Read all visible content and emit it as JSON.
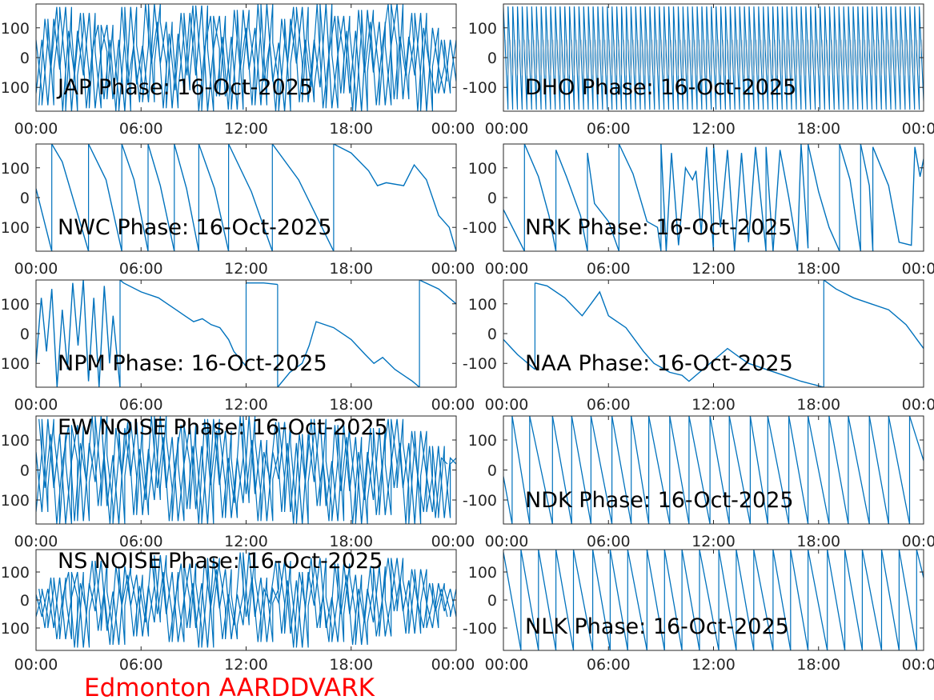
{
  "footer": "Edmonton AARDDVARK",
  "colors": {
    "line": "#0072bd",
    "axis": "#262626",
    "footer": "#ff0000"
  },
  "chart_data": [
    {
      "type": "line",
      "title": "JAP Phase: 16-Oct-2025",
      "ylim": [
        -180,
        180
      ],
      "yticks": [
        "100",
        "0",
        "-100"
      ],
      "xticks": [
        "00:00",
        "06:00",
        "12:00",
        "18:00",
        "00:00"
      ],
      "xlim_hours": [
        0,
        24
      ],
      "grid": false,
      "values": [
        -120,
        60,
        -160,
        130,
        -40,
        170,
        -180,
        90,
        -60,
        150,
        -170,
        20,
        110,
        -140,
        60,
        -180,
        170,
        -90,
        40,
        -150,
        180,
        -20,
        120,
        -170,
        80,
        -110,
        150,
        -60,
        175,
        -180,
        30,
        140,
        -130,
        70,
        -175,
        160,
        -40,
        100,
        -160,
        180,
        -80,
        50,
        -180,
        130,
        -20,
        170,
        -150,
        60,
        -100,
        180,
        -170,
        10,
        140,
        -120,
        90,
        -180,
        160,
        -50,
        120,
        -160,
        40,
        180,
        -140,
        70,
        -60,
        150,
        -180,
        100,
        -30,
        -120,
        60,
        -80
      ]
    },
    {
      "type": "line",
      "title": "DHO Phase: 16-Oct-2025",
      "ylim": [
        -180,
        180
      ],
      "yticks": [
        "100",
        "0",
        "-100"
      ],
      "xticks": [
        "00:00",
        "06:00",
        "12:00",
        "18:00",
        "00:00"
      ],
      "xlim_hours": [
        0,
        24
      ],
      "grid": false,
      "sawtooth_period_hours": 0.27
    },
    {
      "type": "line",
      "title": "NWC Phase: 16-Oct-2025",
      "ylim": [
        -180,
        180
      ],
      "yticks": [
        "100",
        "0",
        "-100"
      ],
      "xticks": [
        "00:00",
        "06:00",
        "12:00",
        "18:00",
        "00:00"
      ],
      "xlim_hours": [
        0,
        24
      ],
      "grid": false,
      "segments": [
        [
          [
            0,
            30
          ],
          [
            0.9,
            -180
          ]
        ],
        [
          [
            0.9,
            180
          ],
          [
            1.5,
            120
          ],
          [
            2.2,
            -20
          ],
          [
            3,
            -180
          ]
        ],
        [
          [
            3,
            180
          ],
          [
            4,
            60
          ],
          [
            4.9,
            -180
          ]
        ],
        [
          [
            4.9,
            180
          ],
          [
            5.6,
            60
          ],
          [
            6.4,
            -180
          ]
        ],
        [
          [
            6.4,
            180
          ],
          [
            7.1,
            40
          ],
          [
            7.9,
            -180
          ]
        ],
        [
          [
            7.9,
            180
          ],
          [
            8.6,
            30
          ],
          [
            9.3,
            -180
          ]
        ],
        [
          [
            9.3,
            180
          ],
          [
            10.2,
            30
          ],
          [
            11,
            -180
          ]
        ],
        [
          [
            11,
            180
          ],
          [
            12.3,
            20
          ],
          [
            13.5,
            -180
          ]
        ],
        [
          [
            13.5,
            180
          ],
          [
            15,
            60
          ],
          [
            17,
            -180
          ]
        ],
        [
          [
            17,
            180
          ],
          [
            18,
            150
          ],
          [
            19,
            90
          ],
          [
            19.5,
            40
          ],
          [
            20,
            50
          ],
          [
            21,
            40
          ],
          [
            21.6,
            110
          ],
          [
            22.3,
            60
          ],
          [
            23,
            -60
          ],
          [
            23.6,
            -100
          ],
          [
            24,
            -180
          ]
        ]
      ]
    },
    {
      "type": "line",
      "title": "NRK Phase: 16-Oct-2025",
      "ylim": [
        -180,
        180
      ],
      "yticks": [
        "100",
        "0",
        "-100"
      ],
      "xticks": [
        "00:00",
        "06:00",
        "12:00",
        "18:00",
        "00:00"
      ],
      "xlim_hours": [
        0,
        24
      ],
      "grid": false,
      "segments": [
        [
          [
            0,
            -40
          ],
          [
            1.2,
            -180
          ]
        ],
        [
          [
            1.2,
            180
          ],
          [
            2,
            70
          ],
          [
            2.6,
            -60
          ],
          [
            3,
            -180
          ]
        ],
        [
          [
            3,
            160
          ],
          [
            3.6,
            70
          ],
          [
            4.4,
            -60
          ],
          [
            4.8,
            -180
          ]
        ],
        [
          [
            4.8,
            150
          ],
          [
            5.2,
            -20
          ],
          [
            6,
            -80
          ],
          [
            6.6,
            -180
          ]
        ],
        [
          [
            6.6,
            180
          ],
          [
            7.4,
            80
          ],
          [
            8.2,
            -80
          ],
          [
            8.8,
            -100
          ],
          [
            9,
            -180
          ]
        ],
        [
          [
            9,
            180
          ],
          [
            9.3,
            -180
          ],
          [
            9.6,
            150
          ],
          [
            10,
            -160
          ],
          [
            10.4,
            100
          ],
          [
            10.8,
            60
          ],
          [
            11,
            90
          ],
          [
            11.3,
            -120
          ],
          [
            11.6,
            170
          ],
          [
            12,
            -180
          ]
        ],
        [
          [
            12,
            180
          ],
          [
            12.4,
            -100
          ],
          [
            12.8,
            160
          ],
          [
            13.2,
            -180
          ],
          [
            13.6,
            150
          ],
          [
            14,
            -150
          ],
          [
            14.4,
            170
          ],
          [
            15,
            -180
          ]
        ],
        [
          [
            15,
            170
          ],
          [
            15.4,
            -180
          ],
          [
            15.8,
            160
          ],
          [
            16.3,
            0
          ],
          [
            16.8,
            -180
          ],
          [
            17,
            180
          ],
          [
            17.4,
            -170
          ]
        ],
        [
          [
            17.4,
            180
          ],
          [
            18,
            20
          ],
          [
            18.6,
            -100
          ],
          [
            19.2,
            -180
          ]
        ],
        [
          [
            19.2,
            180
          ],
          [
            19.8,
            60
          ],
          [
            20.4,
            -180
          ]
        ],
        [
          [
            20.4,
            180
          ],
          [
            20.9,
            40
          ],
          [
            21.1,
            -180
          ]
        ],
        [
          [
            21.1,
            170
          ],
          [
            22,
            40
          ],
          [
            22.6,
            -150
          ],
          [
            23.3,
            -160
          ],
          [
            23.5,
            170
          ],
          [
            23.8,
            70
          ],
          [
            24,
            130
          ]
        ]
      ]
    },
    {
      "type": "line",
      "title": "NPM Phase: 16-Oct-2025",
      "ylim": [
        -180,
        180
      ],
      "yticks": [
        "100",
        "0",
        "-100"
      ],
      "xticks": [
        "00:00",
        "06:00",
        "12:00",
        "18:00",
        "00:00"
      ],
      "xlim_hours": [
        0,
        24
      ],
      "grid": false,
      "segments": [
        [
          [
            0,
            -100
          ],
          [
            0.3,
            120
          ],
          [
            0.6,
            -60
          ],
          [
            0.9,
            150
          ],
          [
            1.2,
            -180
          ],
          [
            1.5,
            80
          ],
          [
            1.8,
            -120
          ],
          [
            2.1,
            170
          ],
          [
            2.4,
            -40
          ],
          [
            2.7,
            180
          ],
          [
            3,
            -160
          ],
          [
            3.3,
            120
          ],
          [
            3.6,
            -180
          ],
          [
            3.9,
            160
          ],
          [
            4.2,
            -100
          ],
          [
            4.4,
            60
          ],
          [
            4.8,
            -180
          ]
        ],
        [
          [
            4.8,
            180
          ],
          [
            5,
            170
          ],
          [
            6,
            140
          ],
          [
            7,
            120
          ],
          [
            7.5,
            100
          ],
          [
            8,
            80
          ],
          [
            8.5,
            60
          ],
          [
            9,
            40
          ],
          [
            9.5,
            50
          ],
          [
            10,
            30
          ],
          [
            10.5,
            20
          ],
          [
            11,
            -20
          ],
          [
            11.3,
            -60
          ],
          [
            12,
            -110
          ]
        ],
        [
          [
            12,
            170
          ],
          [
            13,
            170
          ],
          [
            13.8,
            165
          ]
        ],
        [
          [
            13.8,
            -180
          ],
          [
            14.5,
            -130
          ],
          [
            15.2,
            -100
          ],
          [
            15.6,
            -40
          ],
          [
            16,
            40
          ],
          [
            17,
            20
          ],
          [
            18,
            -20
          ],
          [
            18.8,
            -70
          ],
          [
            19.3,
            -100
          ],
          [
            19.8,
            -80
          ],
          [
            20.5,
            -120
          ],
          [
            21.5,
            -160
          ],
          [
            21.9,
            -180
          ]
        ],
        [
          [
            21.9,
            180
          ],
          [
            23,
            150
          ],
          [
            24,
            100
          ]
        ]
      ]
    },
    {
      "type": "line",
      "title": "NAA Phase: 16-Oct-2025",
      "ylim": [
        -180,
        180
      ],
      "yticks": [
        "100",
        "0",
        "-100"
      ],
      "xticks": [
        "00:00",
        "06:00",
        "12:00",
        "18:00",
        "00:00"
      ],
      "xlim_hours": [
        0,
        24
      ],
      "grid": false,
      "segments": [
        [
          [
            0,
            -20
          ],
          [
            0.8,
            -70
          ],
          [
            1.8,
            -120
          ]
        ],
        [
          [
            1.8,
            170
          ],
          [
            2.5,
            160
          ],
          [
            3.5,
            120
          ],
          [
            4.5,
            60
          ],
          [
            5,
            100
          ],
          [
            5.5,
            140
          ],
          [
            6,
            60
          ],
          [
            7,
            20
          ],
          [
            8,
            -60
          ],
          [
            8.6,
            -100
          ],
          [
            9.5,
            -130
          ],
          [
            10.2,
            -140
          ],
          [
            10.6,
            -160
          ],
          [
            11.2,
            -130
          ],
          [
            12,
            -90
          ],
          [
            12.8,
            -50
          ],
          [
            13.5,
            -80
          ],
          [
            14,
            -100
          ],
          [
            15,
            -120
          ],
          [
            16,
            -140
          ],
          [
            17,
            -160
          ],
          [
            18.3,
            -180
          ]
        ],
        [
          [
            18.3,
            180
          ],
          [
            19,
            150
          ],
          [
            20,
            120
          ],
          [
            21,
            100
          ],
          [
            22,
            80
          ],
          [
            23,
            30
          ],
          [
            24,
            -50
          ]
        ]
      ]
    },
    {
      "type": "line",
      "title": "EW NOISE Phase: 16-Oct-2025",
      "ylim": [
        -180,
        180
      ],
      "yticks": [
        "100",
        "0",
        "-100"
      ],
      "xticks": [
        "00:00",
        "06:00",
        "12:00",
        "18:00",
        "00:00"
      ],
      "xlim_hours": [
        0,
        24
      ],
      "grid": false,
      "values": [
        60,
        -140,
        170,
        -60,
        120,
        -180,
        30,
        150,
        -170,
        90,
        -40,
        180,
        -120,
        50,
        -180,
        140,
        -20,
        160,
        -150,
        70,
        -100,
        180,
        -60,
        110,
        -170,
        20,
        150,
        -130,
        80,
        -180,
        170,
        -50,
        130,
        -160,
        40,
        -110,
        180,
        -80,
        100,
        -170,
        60,
        -30,
        160,
        -140,
        90,
        -180,
        120,
        -40,
        170,
        -120,
        30,
        -170,
        150,
        -70,
        110,
        -180,
        60,
        -100,
        140,
        -150,
        20,
        170,
        -60,
        90,
        -180,
        130,
        -20,
        -140,
        80,
        -160,
        40,
        20
      ]
    },
    {
      "type": "line",
      "title": "NDK Phase: 16-Oct-2025",
      "ylim": [
        -180,
        180
      ],
      "yticks": [
        "100",
        "0",
        "-100"
      ],
      "xticks": [
        "00:00",
        "06:00",
        "12:00",
        "18:00",
        "00:00"
      ],
      "xlim_hours": [
        0,
        24
      ],
      "grid": false,
      "wraps_hours": [
        0.5,
        1.5,
        2.8,
        3.9,
        5.0,
        6.2,
        7.3,
        8.3,
        9.5,
        10.6,
        11.8,
        12.9,
        14.1,
        15.1,
        16.3,
        17.4,
        18.6,
        19.7,
        20.9,
        22.0,
        23.2
      ]
    },
    {
      "type": "line",
      "title": "NS NOISE Phase: 16-Oct-2025",
      "ylim": [
        -180,
        180
      ],
      "yticks": [
        "100",
        "0",
        "-100"
      ],
      "xticks": [
        "00:00",
        "06:00",
        "12:00",
        "18:00",
        "00:00"
      ],
      "xlim_hours": [
        0,
        24
      ],
      "grid": false,
      "values": [
        20,
        -60,
        40,
        -100,
        80,
        -140,
        10,
        100,
        -170,
        60,
        -40,
        140,
        -110,
        30,
        -160,
        120,
        -20,
        90,
        -130,
        50,
        -80,
        160,
        -50,
        100,
        -150,
        0,
        130,
        -100,
        60,
        -170,
        150,
        -30,
        110,
        -140,
        20,
        -90,
        170,
        -60,
        80,
        -150,
        40,
        -10,
        140,
        -120,
        70,
        -170,
        100,
        -20,
        150,
        -100,
        10,
        -150,
        130,
        -50,
        90,
        -160,
        40,
        -80,
        120,
        -130,
        0,
        150,
        -40,
        70,
        -120,
        110,
        -10,
        -100,
        60,
        -40,
        40,
        -60
      ]
    },
    {
      "type": "line",
      "title": "NLK Phase: 16-Oct-2025",
      "ylim": [
        -180,
        180
      ],
      "yticks": [
        "100",
        "0",
        "-100"
      ],
      "xticks": [
        "00:00",
        "06:00",
        "12:00",
        "18:00",
        "00:00"
      ],
      "xlim_hours": [
        0,
        24
      ],
      "grid": false,
      "wraps_hours": [
        1.0,
        2.0,
        3.0,
        4.0,
        5.1,
        6.1,
        7.1,
        8.2,
        9.2,
        10.2,
        11.2,
        12.3,
        13.3,
        14.3,
        15.4,
        16.4,
        17.4,
        18.5,
        19.5,
        20.5,
        21.6,
        22.6,
        23.6
      ]
    }
  ]
}
